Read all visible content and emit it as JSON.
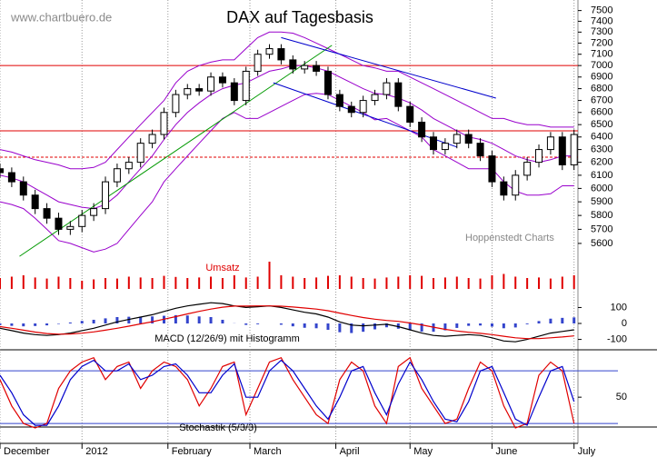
{
  "chart_data": [
    {
      "type": "candlestick",
      "title": "DAX auf Tagesbasis",
      "watermark": "www.chartbuero.de",
      "source": "Hoppenstedt Charts",
      "log": true,
      "ylim": [
        5555,
        7600
      ],
      "yticks": [
        5600,
        5700,
        5800,
        5900,
        6000,
        6100,
        6200,
        6300,
        6400,
        6500,
        6600,
        6700,
        6800,
        6900,
        7000,
        7100,
        7200,
        7300,
        7400,
        7500
      ],
      "xlim": [
        0,
        148
      ],
      "xticks": [
        {
          "value": 0,
          "label": "December"
        },
        {
          "value": 21,
          "label": "2012"
        },
        {
          "value": 43,
          "label": "February"
        },
        {
          "value": 64,
          "label": "March"
        },
        {
          "value": 86,
          "label": "April"
        },
        {
          "value": 105,
          "label": "May"
        },
        {
          "value": 126,
          "label": "June"
        },
        {
          "value": 147,
          "label": "July"
        }
      ],
      "x": [
        0,
        3,
        6,
        9,
        12,
        15,
        18,
        21,
        24,
        27,
        30,
        33,
        36,
        39,
        42,
        45,
        48,
        51,
        54,
        57,
        60,
        63,
        66,
        69,
        72,
        75,
        78,
        81,
        84,
        87,
        90,
        93,
        96,
        99,
        102,
        105,
        108,
        111,
        114,
        117,
        120,
        123,
        126,
        129,
        132,
        135,
        138,
        141,
        144,
        147
      ],
      "open": [
        6150,
        6120,
        6050,
        5950,
        5850,
        5780,
        5700,
        5720,
        5800,
        5850,
        6050,
        6150,
        6200,
        6350,
        6420,
        6600,
        6750,
        6800,
        6780,
        6900,
        6850,
        6700,
        6950,
        7100,
        7150,
        7050,
        6970,
        7000,
        6950,
        6750,
        6650,
        6600,
        6700,
        6750,
        6850,
        6650,
        6520,
        6400,
        6300,
        6350,
        6420,
        6350,
        6250,
        6050,
        5950,
        6100,
        6200,
        6300,
        6400,
        6180
      ],
      "high": [
        6190,
        6160,
        6090,
        5990,
        5890,
        5820,
        5760,
        5840,
        5890,
        6090,
        6190,
        6240,
        6390,
        6460,
        6640,
        6790,
        6840,
        6840,
        6940,
        6940,
        6890,
        6990,
        7140,
        7190,
        7190,
        7090,
        7040,
        7040,
        6990,
        6790,
        6690,
        6740,
        6790,
        6890,
        6890,
        6690,
        6560,
        6440,
        6390,
        6460,
        6460,
        6390,
        6290,
        6090,
        6140,
        6240,
        6340,
        6440,
        6440,
        6460
      ],
      "low": [
        6080,
        6010,
        5910,
        5810,
        5740,
        5660,
        5660,
        5680,
        5760,
        5810,
        6010,
        6110,
        6160,
        6310,
        6380,
        6560,
        6710,
        6740,
        6740,
        6810,
        6660,
        6660,
        6910,
        7060,
        7010,
        6930,
        6930,
        6910,
        6710,
        6610,
        6560,
        6560,
        6660,
        6710,
        6610,
        6480,
        6360,
        6260,
        6260,
        6310,
        6310,
        6210,
        6010,
        5910,
        5910,
        6060,
        6160,
        6260,
        6140,
        6140
      ],
      "close": [
        6120,
        6050,
        5950,
        5850,
        5780,
        5700,
        5720,
        5800,
        5850,
        6050,
        6150,
        6200,
        6350,
        6420,
        6600,
        6750,
        6800,
        6780,
        6900,
        6850,
        6700,
        6950,
        7100,
        7150,
        7050,
        6970,
        7000,
        6950,
        6750,
        6650,
        6600,
        6700,
        6750,
        6850,
        6650,
        6520,
        6400,
        6300,
        6350,
        6420,
        6350,
        6250,
        6050,
        5950,
        6100,
        6200,
        6300,
        6400,
        6180,
        6420
      ],
      "up_color": "#ffffff",
      "down_color": "#000000",
      "bands": {
        "color": "#9900cc",
        "upper": [
          6300,
          6280,
          6250,
          6220,
          6200,
          6180,
          6150,
          6150,
          6160,
          6200,
          6300,
          6400,
          6500,
          6600,
          6700,
          6850,
          6950,
          7000,
          7030,
          7050,
          7050,
          7150,
          7250,
          7300,
          7300,
          7290,
          7250,
          7200,
          7150,
          7100,
          7050,
          7000,
          6980,
          6950,
          6950,
          6900,
          6850,
          6800,
          6750,
          6700,
          6650,
          6600,
          6550,
          6550,
          6520,
          6500,
          6500,
          6480,
          6480,
          6480
        ],
        "middle": [
          6100,
          6080,
          6050,
          6000,
          5950,
          5900,
          5880,
          5860,
          5850,
          5880,
          5950,
          6050,
          6150,
          6250,
          6380,
          6500,
          6600,
          6680,
          6750,
          6800,
          6830,
          6850,
          6900,
          6950,
          6970,
          7000,
          7000,
          6980,
          6950,
          6900,
          6850,
          6800,
          6760,
          6750,
          6720,
          6680,
          6620,
          6550,
          6500,
          6450,
          6400,
          6380,
          6350,
          6300,
          6250,
          6220,
          6200,
          6220,
          6250,
          6250
        ],
        "lower": [
          5900,
          5880,
          5850,
          5780,
          5700,
          5620,
          5600,
          5570,
          5540,
          5560,
          5600,
          5700,
          5800,
          5900,
          6050,
          6150,
          6250,
          6350,
          6450,
          6550,
          6600,
          6550,
          6550,
          6600,
          6650,
          6700,
          6750,
          6760,
          6750,
          6700,
          6650,
          6600,
          6540,
          6550,
          6500,
          6450,
          6400,
          6300,
          6250,
          6200,
          6150,
          6150,
          6150,
          6050,
          5980,
          5950,
          5950,
          5960,
          6020,
          6020
        ]
      },
      "hlines": [
        {
          "value": 7000,
          "color": "#e00000"
        },
        {
          "value": 6450,
          "color": "#e00000"
        },
        {
          "value": 6240,
          "color": "#e00000",
          "dashed": true
        }
      ],
      "trendlines": [
        {
          "x": [
            5,
            85
          ],
          "y": [
            5510,
            7180
          ],
          "color": "#009900"
        },
        {
          "x": [
            72,
            127
          ],
          "y": [
            7250,
            6720
          ],
          "color": "#0000cc"
        },
        {
          "x": [
            70,
            117
          ],
          "y": [
            6850,
            6320
          ],
          "color": "#0000cc"
        }
      ]
    },
    {
      "type": "bar",
      "title": "Umsatz",
      "color": "#e00000",
      "ylim": [
        0,
        100
      ],
      "values": [
        40,
        45,
        50,
        42,
        38,
        45,
        40,
        30,
        35,
        40,
        38,
        45,
        42,
        40,
        48,
        44,
        40,
        42,
        45,
        40,
        50,
        42,
        45,
        100,
        50,
        45,
        40,
        42,
        48,
        50,
        45,
        40,
        38,
        42,
        45,
        50,
        48,
        40,
        42,
        45,
        40,
        38,
        50,
        55,
        45,
        40,
        42,
        38,
        45,
        50
      ]
    },
    {
      "type": "line",
      "title": "MACD (12/26/9) mit Histogramm",
      "ylim": [
        -165,
        205
      ],
      "yticks": [
        100,
        0,
        -100
      ],
      "series": [
        {
          "color": "#000000",
          "values": [
            -30,
            -45,
            -60,
            -70,
            -75,
            -70,
            -60,
            -45,
            -30,
            -10,
            10,
            25,
            40,
            55,
            75,
            95,
            110,
            120,
            130,
            125,
            110,
            100,
            105,
            110,
            100,
            85,
            70,
            60,
            40,
            10,
            -10,
            -15,
            -10,
            -5,
            -20,
            -40,
            -60,
            -75,
            -80,
            -75,
            -70,
            -75,
            -90,
            -110,
            -115,
            -100,
            -80,
            -60,
            -50,
            -40
          ]
        },
        {
          "color": "#e00000",
          "values": [
            -20,
            -30,
            -42,
            -54,
            -63,
            -67,
            -66,
            -61,
            -53,
            -42,
            -30,
            -17,
            -3,
            11,
            27,
            43,
            60,
            76,
            90,
            102,
            109,
            109,
            110,
            110,
            108,
            103,
            97,
            90,
            80,
            65,
            50,
            37,
            27,
            19,
            13,
            3,
            -9,
            -23,
            -37,
            -47,
            -55,
            -62,
            -70,
            -80,
            -90,
            -95,
            -95,
            -90,
            -85,
            -78
          ]
        }
      ],
      "histogram": {
        "color": "#3344cc",
        "values": [
          -10,
          -15,
          -18,
          -16,
          -12,
          -3,
          6,
          16,
          23,
          32,
          40,
          42,
          43,
          44,
          48,
          52,
          50,
          44,
          40,
          23,
          1,
          -9,
          -5,
          0,
          -8,
          -18,
          -27,
          -30,
          -40,
          -55,
          -60,
          -52,
          -37,
          -24,
          -33,
          -43,
          -51,
          -52,
          -43,
          -28,
          -15,
          -13,
          -20,
          -30,
          -25,
          -5,
          15,
          30,
          35,
          38
        ]
      }
    },
    {
      "type": "line",
      "title": "Stochastik (5/3/3)",
      "ylim": [
        16,
        104
      ],
      "yticks": [
        50
      ],
      "hlines": [
        {
          "value": 80,
          "color": "#3344cc"
        },
        {
          "value": 20,
          "color": "#3344cc"
        }
      ],
      "series": [
        {
          "color": "#e00000",
          "values": [
            70,
            40,
            20,
            15,
            20,
            60,
            80,
            90,
            95,
            70,
            85,
            90,
            60,
            80,
            90,
            85,
            70,
            40,
            60,
            85,
            90,
            30,
            60,
            90,
            95,
            70,
            50,
            30,
            20,
            70,
            90,
            80,
            40,
            20,
            85,
            95,
            60,
            40,
            20,
            25,
            60,
            90,
            80,
            40,
            15,
            20,
            75,
            90,
            80,
            20
          ]
        },
        {
          "color": "#0000cc",
          "values": [
            75,
            55,
            30,
            18,
            18,
            40,
            70,
            85,
            92,
            80,
            80,
            88,
            70,
            75,
            85,
            88,
            75,
            55,
            55,
            75,
            88,
            50,
            50,
            80,
            92,
            80,
            60,
            40,
            25,
            50,
            80,
            85,
            55,
            30,
            65,
            90,
            70,
            45,
            25,
            22,
            45,
            80,
            85,
            55,
            25,
            18,
            50,
            80,
            85,
            45
          ]
        }
      ]
    }
  ]
}
